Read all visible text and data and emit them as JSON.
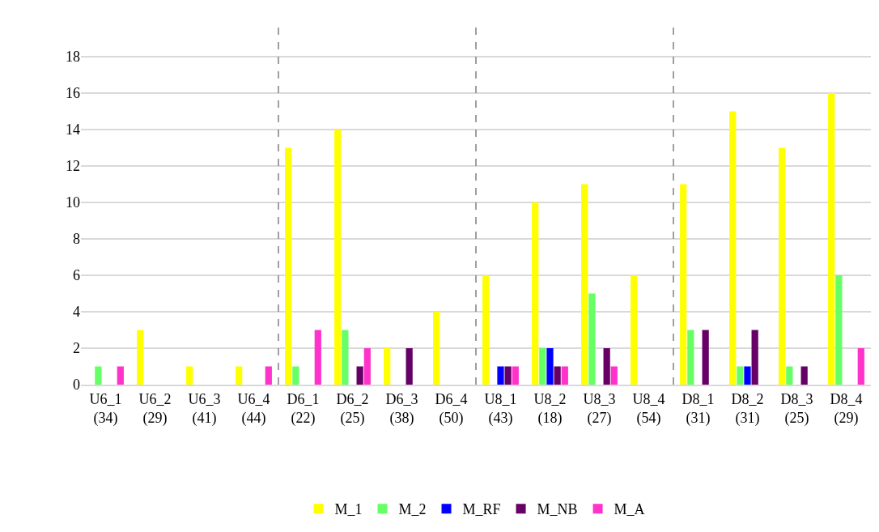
{
  "chart_data": {
    "type": "bar",
    "categories": [
      "U6_1\n(34)",
      "U6_2\n(29)",
      "U6_3\n(41)",
      "U6_4\n(44)",
      "D6_1\n(22)",
      "D6_2\n(25)",
      "D6_3\n(38)",
      "D6_4\n(50)",
      "U8_1\n(43)",
      "U8_2\n(18)",
      "U8_3\n(27)",
      "U8_4\n(54)",
      "D8_1\n(31)",
      "D8_2\n(31)",
      "D8_3\n(25)",
      "D8_4\n(29)"
    ],
    "series": [
      {
        "name": "M_1",
        "color": "#ffff00",
        "values": [
          0,
          3,
          1,
          1,
          13,
          14,
          2,
          4,
          6,
          10,
          11,
          6,
          11,
          15,
          13,
          16
        ]
      },
      {
        "name": "M_2",
        "color": "#66ff66",
        "values": [
          1,
          0,
          0,
          0,
          1,
          3,
          0,
          0,
          0,
          2,
          5,
          0,
          3,
          1,
          1,
          6
        ]
      },
      {
        "name": "M_RF",
        "color": "#0000ff",
        "values": [
          0,
          0,
          0,
          0,
          0,
          0,
          0,
          0,
          1,
          2,
          0,
          0,
          0,
          1,
          0,
          0
        ]
      },
      {
        "name": "M_NB",
        "color": "#660066",
        "values": [
          0,
          0,
          0,
          0,
          0,
          1,
          2,
          0,
          1,
          1,
          2,
          0,
          3,
          3,
          1,
          0
        ]
      },
      {
        "name": "M_A",
        "color": "#ff33cc",
        "values": [
          1,
          0,
          0,
          1,
          3,
          2,
          0,
          0,
          1,
          1,
          1,
          0,
          0,
          0,
          0,
          2
        ]
      }
    ],
    "ylim": [
      0,
      20
    ],
    "yticks": [
      0,
      2,
      4,
      6,
      8,
      10,
      12,
      14,
      16,
      18
    ],
    "grid": "y",
    "legend": "bottom"
  }
}
